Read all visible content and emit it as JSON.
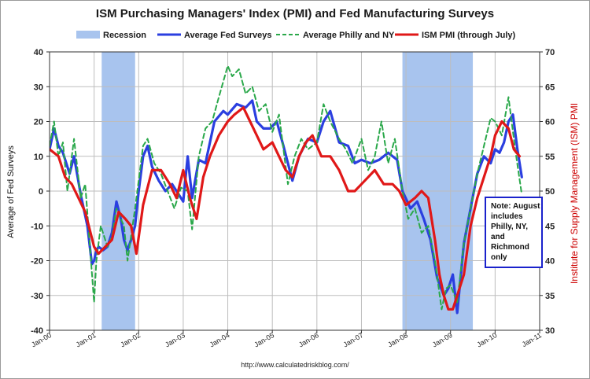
{
  "chart_data": {
    "type": "line",
    "title": "ISM Purchasing Managers' Index (PMI) and Fed Manufacturing Surveys",
    "ylabel": "Average of Fed Surveys",
    "ylabel_right": "Institute for Supply Management (ISM) PMI",
    "footer": "http://www.calculatedriskblog.com/",
    "ylim": [
      -40,
      40
    ],
    "y_ticks": [
      40,
      30,
      20,
      10,
      0,
      -10,
      -20,
      -30,
      -40
    ],
    "y_tick_labels": [
      "40",
      "30",
      "20",
      "10",
      "0",
      "-10",
      "-20",
      "-30",
      "-40"
    ],
    "ylim_right": [
      30,
      70
    ],
    "y_ticks_right": [
      70,
      65,
      60,
      55,
      50,
      45,
      40,
      35,
      30
    ],
    "y_tick_labels_right": [
      "70",
      "65",
      "60",
      "55",
      "50",
      "45",
      "40",
      "35",
      "30"
    ],
    "xlim": [
      2000.0,
      2011.0
    ],
    "x_ticks": [
      2000,
      2001,
      2002,
      2003,
      2004,
      2005,
      2006,
      2007,
      2008,
      2009,
      2010,
      2011
    ],
    "x_tick_labels": [
      "Jan-00",
      "Jan-01",
      "Jan-02",
      "Jan-03",
      "Jan-04",
      "Jan-05",
      "Jan-06",
      "Jan-07",
      "Jan-08",
      "Jan-09",
      "Jan-10",
      "Jan-11"
    ],
    "recessions": [
      [
        2001.17,
        2001.92
      ],
      [
        2007.92,
        2009.5
      ]
    ],
    "legend": [
      {
        "label": "Recession",
        "kind": "band",
        "color": "#a8c4ee"
      },
      {
        "label": "Average Fed Surveys",
        "kind": "line",
        "color": "#2b3fe0"
      },
      {
        "label": "Average Philly and NY",
        "kind": "dashed",
        "color": "#2aa84a"
      },
      {
        "label": "ISM PMI (through July)",
        "kind": "line",
        "color": "#e01818"
      }
    ],
    "note_lines": [
      "Note: August",
      "includes",
      "Philly, NY,",
      "and",
      "Richmond",
      "only"
    ],
    "series": [
      {
        "name": "Average Fed Surveys",
        "axis": "left",
        "color": "#2b3fe0",
        "x": [
          2000.0,
          2000.1,
          2000.2,
          2000.3,
          2000.45,
          2000.55,
          2000.7,
          2000.85,
          2000.95,
          2001.0,
          2001.05,
          2001.1,
          2001.2,
          2001.3,
          2001.4,
          2001.5,
          2001.6,
          2001.67,
          2001.75,
          2001.83,
          2001.92,
          2002.0,
          2002.1,
          2002.2,
          2002.3,
          2002.45,
          2002.6,
          2002.75,
          2002.85,
          2003.0,
          2003.1,
          2003.2,
          2003.35,
          2003.5,
          2003.7,
          2003.9,
          2004.0,
          2004.2,
          2004.4,
          2004.55,
          2004.65,
          2004.8,
          2004.95,
          2005.1,
          2005.25,
          2005.45,
          2005.6,
          2005.8,
          2006.0,
          2006.15,
          2006.3,
          2006.5,
          2006.7,
          2006.85,
          2007.0,
          2007.2,
          2007.4,
          2007.6,
          2007.8,
          2007.92,
          2008.1,
          2008.25,
          2008.4,
          2008.55,
          2008.7,
          2008.85,
          2008.95,
          2009.05,
          2009.15,
          2009.3,
          2009.45,
          2009.6,
          2009.75,
          2009.9,
          2010.0,
          2010.1,
          2010.2,
          2010.3,
          2010.4,
          2010.5,
          2010.6
        ],
        "y": [
          12,
          18,
          13,
          11,
          5,
          10,
          -1,
          -10,
          -21,
          -20,
          -17,
          -16,
          -17,
          -16,
          -12,
          -3,
          -8,
          -14,
          -17,
          -14,
          -10,
          0,
          10,
          13,
          7,
          3,
          0,
          2,
          0,
          -3,
          10,
          -2,
          9,
          8,
          20,
          23,
          22,
          25,
          24,
          26,
          20,
          18,
          18,
          20,
          13,
          3,
          10,
          15,
          14,
          20,
          23,
          14,
          13,
          8,
          9,
          8,
          9,
          11,
          9,
          0,
          -5,
          -3,
          -8,
          -14,
          -25,
          -30,
          -28,
          -24,
          -35,
          -15,
          -5,
          5,
          10,
          8,
          12,
          11,
          14,
          20,
          22,
          12,
          4
        ]
      },
      {
        "name": "Average Philly and NY",
        "axis": "left",
        "color": "#2aa84a",
        "dashed": true,
        "x": [
          2000.0,
          2000.1,
          2000.2,
          2000.3,
          2000.4,
          2000.55,
          2000.7,
          2000.8,
          2000.9,
          2001.0,
          2001.05,
          2001.15,
          2001.3,
          2001.4,
          2001.5,
          2001.6,
          2001.67,
          2001.75,
          2001.83,
          2001.92,
          2002.0,
          2002.1,
          2002.2,
          2002.35,
          2002.5,
          2002.65,
          2002.8,
          2002.95,
          2003.1,
          2003.2,
          2003.35,
          2003.5,
          2003.65,
          2003.8,
          2004.0,
          2004.1,
          2004.25,
          2004.4,
          2004.55,
          2004.7,
          2004.85,
          2005.0,
          2005.15,
          2005.35,
          2005.5,
          2005.65,
          2005.8,
          2006.0,
          2006.15,
          2006.3,
          2006.5,
          2006.65,
          2006.8,
          2007.0,
          2007.15,
          2007.3,
          2007.45,
          2007.6,
          2007.75,
          2007.92,
          2008.05,
          2008.2,
          2008.35,
          2008.5,
          2008.65,
          2008.8,
          2008.9,
          2009.0,
          2009.15,
          2009.3,
          2009.45,
          2009.6,
          2009.75,
          2009.9,
          2010.0,
          2010.15,
          2010.3,
          2010.45,
          2010.6
        ],
        "y": [
          13,
          20,
          10,
          14,
          0,
          15,
          -2,
          2,
          -15,
          -32,
          -20,
          -10,
          -16,
          -13,
          -5,
          -8,
          -10,
          -20,
          -13,
          -5,
          3,
          13,
          15,
          8,
          5,
          0,
          -5,
          1,
          0,
          -11,
          10,
          18,
          20,
          27,
          36,
          33,
          35,
          28,
          30,
          23,
          25,
          17,
          22,
          2,
          10,
          15,
          12,
          14,
          25,
          20,
          15,
          12,
          8,
          15,
          6,
          10,
          20,
          8,
          15,
          0,
          -8,
          -5,
          -12,
          -10,
          -20,
          -34,
          -28,
          -27,
          -32,
          -15,
          -5,
          5,
          13,
          21,
          20,
          16,
          27,
          12,
          -1
        ]
      },
      {
        "name": "ISM PMI (through July)",
        "axis": "right",
        "color": "#e01818",
        "x": [
          2000.0,
          2000.2,
          2000.35,
          2000.5,
          2000.65,
          2000.8,
          2000.92,
          2001.0,
          2001.1,
          2001.25,
          2001.4,
          2001.55,
          2001.7,
          2001.83,
          2001.95,
          2002.1,
          2002.3,
          2002.5,
          2002.7,
          2002.85,
          2003.0,
          2003.15,
          2003.3,
          2003.45,
          2003.6,
          2003.8,
          2004.0,
          2004.15,
          2004.35,
          2004.5,
          2004.65,
          2004.8,
          2005.0,
          2005.15,
          2005.3,
          2005.45,
          2005.6,
          2005.75,
          2005.9,
          2006.1,
          2006.3,
          2006.5,
          2006.7,
          2006.85,
          2007.0,
          2007.15,
          2007.3,
          2007.5,
          2007.7,
          2007.85,
          2008.0,
          2008.2,
          2008.35,
          2008.5,
          2008.65,
          2008.75,
          2008.85,
          2008.95,
          2009.05,
          2009.15,
          2009.3,
          2009.45,
          2009.6,
          2009.75,
          2009.9,
          2010.0,
          2010.15,
          2010.3,
          2010.42,
          2010.55
        ],
        "y": [
          56,
          55,
          52,
          51,
          49,
          47,
          44,
          42,
          41,
          42,
          43,
          47,
          46,
          45,
          41,
          48,
          53,
          53,
          51,
          49,
          53,
          49,
          46,
          52,
          55,
          58,
          60,
          61,
          62,
          60,
          58,
          56,
          57,
          55,
          53,
          52,
          55,
          57,
          58,
          55,
          55,
          53,
          50,
          50,
          51,
          52,
          53,
          51,
          51,
          50,
          48,
          49,
          50,
          49,
          43,
          38,
          35,
          33,
          33,
          35,
          38,
          45,
          49,
          52,
          55,
          58,
          60,
          59,
          56,
          55
        ]
      }
    ]
  }
}
